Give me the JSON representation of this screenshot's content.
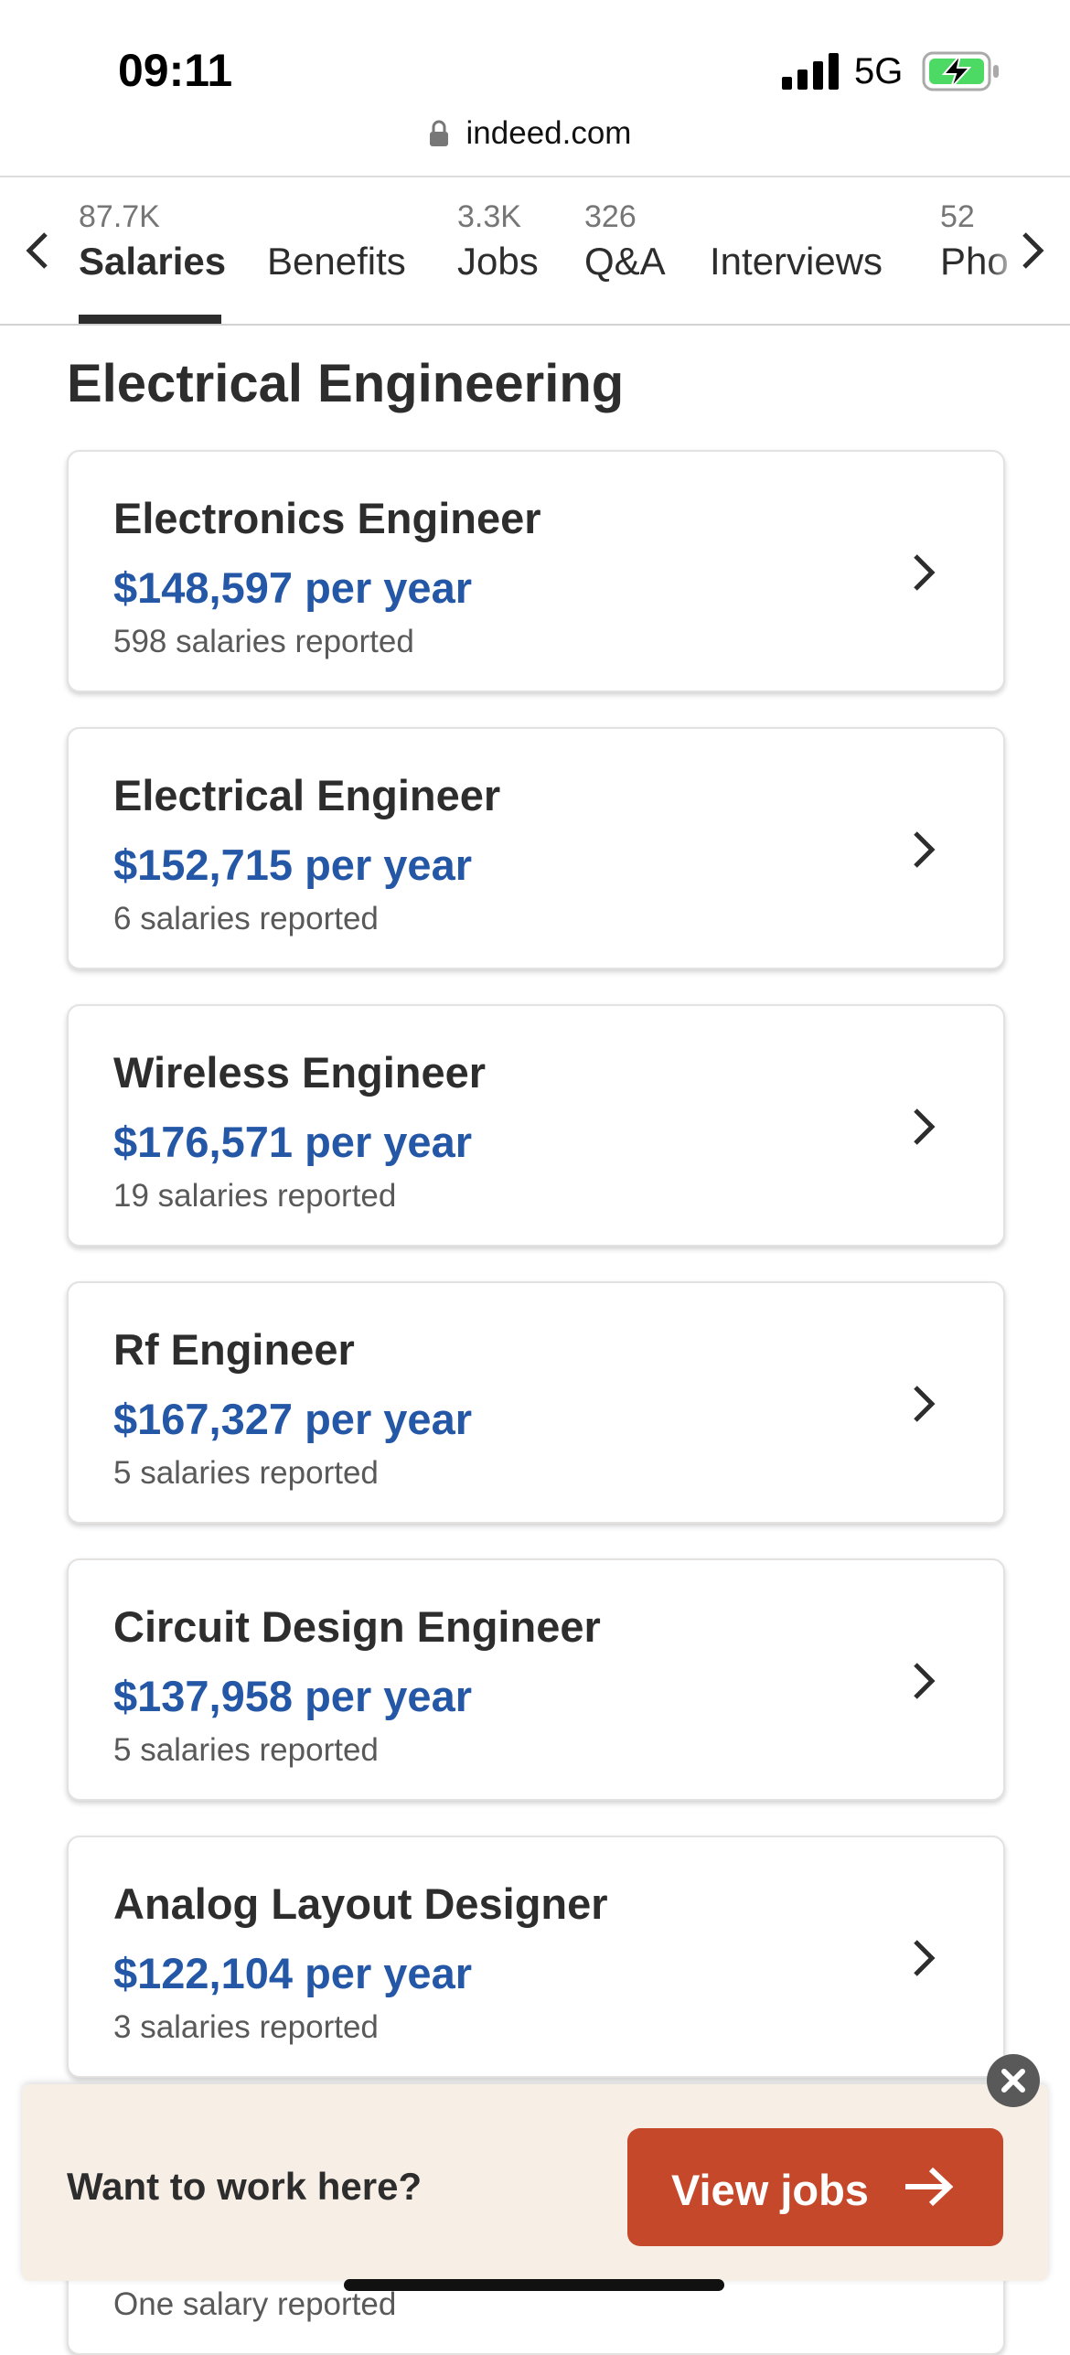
{
  "status_bar": {
    "time": "09:11",
    "network": "5G"
  },
  "url": "indeed.com",
  "tabs": [
    {
      "count": "87.7K",
      "label": "Salaries"
    },
    {
      "label": "Benefits"
    },
    {
      "count": "3.3K",
      "label": "Jobs"
    },
    {
      "count": "326",
      "label": "Q&A"
    },
    {
      "label": "Interviews"
    },
    {
      "count": "52",
      "label": "Pho"
    }
  ],
  "section_title": "Electrical Engineering",
  "cards": [
    {
      "title": "Electronics Engineer",
      "salary": "$148,597 per year",
      "reported": "598 salaries reported"
    },
    {
      "title": "Electrical Engineer",
      "salary": "$152,715 per year",
      "reported": "6 salaries reported"
    },
    {
      "title": "Wireless Engineer",
      "salary": "$176,571 per year",
      "reported": "19 salaries reported"
    },
    {
      "title": "Rf Engineer",
      "salary": "$167,327 per year",
      "reported": "5 salaries reported"
    },
    {
      "title": "Circuit Design Engineer",
      "salary": "$137,958 per year",
      "reported": "5 salaries reported"
    },
    {
      "title": "Analog Layout Designer",
      "salary": "$122,104 per year",
      "reported": "3 salaries reported"
    },
    {
      "reported": "One salary reported"
    }
  ],
  "banner": {
    "prompt": "Want to work here?",
    "button": "View jobs"
  }
}
